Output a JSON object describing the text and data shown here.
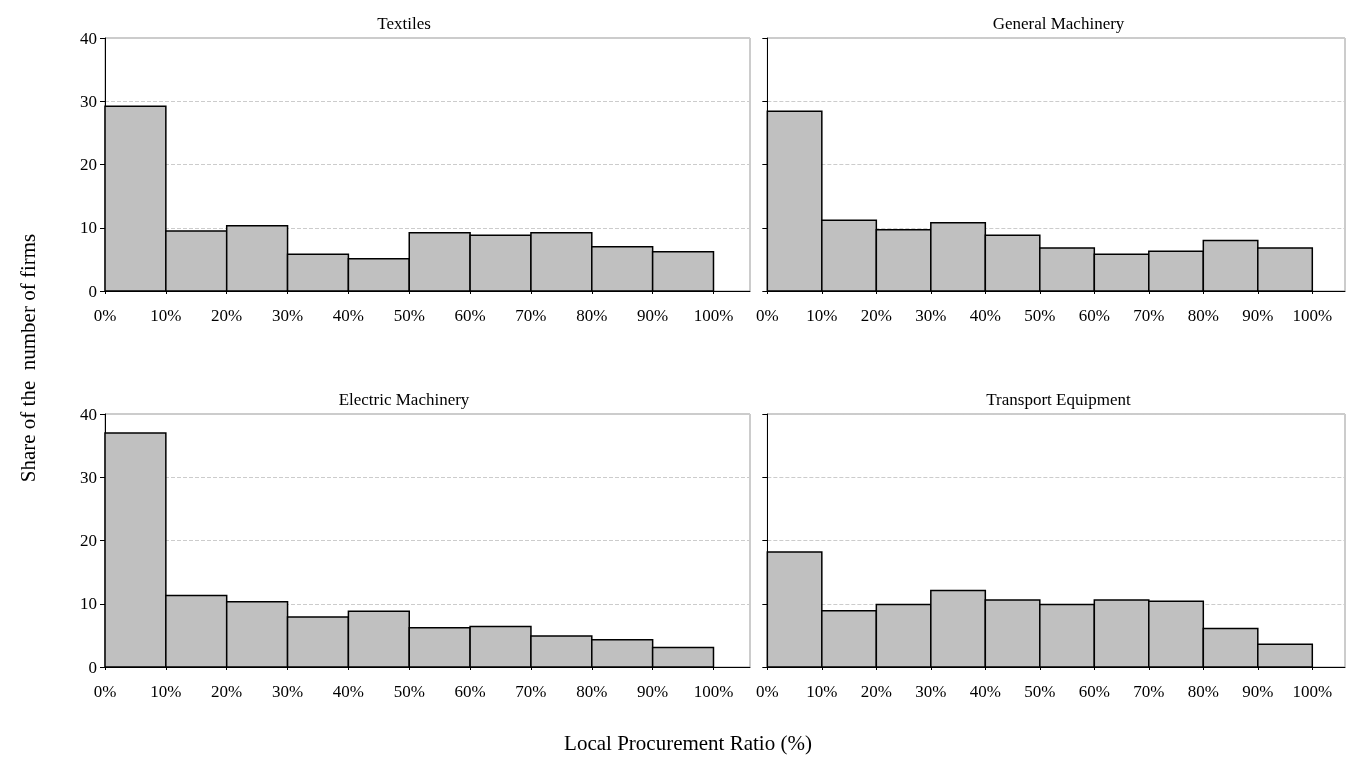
{
  "chart_data": [
    {
      "type": "histogram",
      "title": "Textiles",
      "ylabel": "Share of the  number of firms",
      "bins": [
        0,
        10,
        20,
        30,
        40,
        50,
        60,
        70,
        80,
        90,
        100
      ],
      "values": [
        29.2,
        9.5,
        10.3,
        5.8,
        5.1,
        9.2,
        8.8,
        9.2,
        7.0,
        6.2
      ],
      "color": "#c0c0c0",
      "xlim": [
        0,
        106
      ],
      "xticks": [
        {
          "value": 0,
          "label": "0%"
        },
        {
          "value": 10,
          "label": "10%"
        },
        {
          "value": 20,
          "label": "20%"
        },
        {
          "value": 30,
          "label": "30%"
        },
        {
          "value": 40,
          "label": "40%"
        },
        {
          "value": 50,
          "label": "50%"
        },
        {
          "value": 60,
          "label": "60%"
        },
        {
          "value": 70,
          "label": "70%"
        },
        {
          "value": 80,
          "label": "80%"
        },
        {
          "value": 90,
          "label": "90%"
        },
        {
          "value": 100,
          "label": "100%"
        }
      ],
      "ylim": [
        0,
        40
      ],
      "yticks": [
        0,
        10,
        20,
        30,
        40
      ],
      "grid": "y"
    },
    {
      "type": "histogram",
      "title": "General Machinery",
      "bins": [
        0,
        10,
        20,
        30,
        40,
        50,
        60,
        70,
        80,
        90,
        100
      ],
      "values": [
        28.4,
        11.2,
        9.7,
        10.8,
        8.8,
        6.8,
        5.8,
        6.3,
        8.0,
        6.8
      ],
      "color": "#c0c0c0",
      "xlim": [
        0,
        106
      ],
      "xticks": [
        {
          "value": 0,
          "label": "0%"
        },
        {
          "value": 10,
          "label": "10%"
        },
        {
          "value": 20,
          "label": "20%"
        },
        {
          "value": 30,
          "label": "30%"
        },
        {
          "value": 40,
          "label": "40%"
        },
        {
          "value": 50,
          "label": "50%"
        },
        {
          "value": 60,
          "label": "60%"
        },
        {
          "value": 70,
          "label": "70%"
        },
        {
          "value": 80,
          "label": "80%"
        },
        {
          "value": 90,
          "label": "90%"
        },
        {
          "value": 100,
          "label": "100%"
        }
      ],
      "ylim": [
        0,
        40
      ],
      "yticks": [
        0,
        10,
        20,
        30,
        40
      ],
      "grid": "y",
      "tick_labels": "x"
    },
    {
      "type": "histogram",
      "title": "Electric Machinery",
      "xlabel": "Local Procurement Ratio (%)",
      "bins": [
        0,
        10,
        20,
        30,
        40,
        50,
        60,
        70,
        80,
        90,
        100
      ],
      "values": [
        37.0,
        11.3,
        10.3,
        7.9,
        8.8,
        6.2,
        6.4,
        4.9,
        4.3,
        3.1
      ],
      "color": "#c0c0c0",
      "xlim": [
        0,
        106
      ],
      "xticks": [
        {
          "value": 0,
          "label": "0%"
        },
        {
          "value": 10,
          "label": "10%"
        },
        {
          "value": 20,
          "label": "20%"
        },
        {
          "value": 30,
          "label": "30%"
        },
        {
          "value": 40,
          "label": "40%"
        },
        {
          "value": 50,
          "label": "50%"
        },
        {
          "value": 60,
          "label": "60%"
        },
        {
          "value": 70,
          "label": "70%"
        },
        {
          "value": 80,
          "label": "80%"
        },
        {
          "value": 90,
          "label": "90%"
        },
        {
          "value": 100,
          "label": "100%"
        }
      ],
      "ylim": [
        0,
        40
      ],
      "yticks": [
        0,
        10,
        20,
        30,
        40
      ],
      "grid": "y"
    },
    {
      "type": "histogram",
      "title": "Transport Equipment",
      "bins": [
        0,
        10,
        20,
        30,
        40,
        50,
        60,
        70,
        80,
        90,
        100
      ],
      "values": [
        18.2,
        8.9,
        9.9,
        12.1,
        10.6,
        9.9,
        10.6,
        10.4,
        6.1,
        3.6
      ],
      "color": "#c0c0c0",
      "xlim": [
        0,
        106
      ],
      "xticks": [
        {
          "value": 0,
          "label": "0%"
        },
        {
          "value": 10,
          "label": "10%"
        },
        {
          "value": 20,
          "label": "20%"
        },
        {
          "value": 30,
          "label": "30%"
        },
        {
          "value": 40,
          "label": "40%"
        },
        {
          "value": 50,
          "label": "50%"
        },
        {
          "value": 60,
          "label": "60%"
        },
        {
          "value": 70,
          "label": "70%"
        },
        {
          "value": 80,
          "label": "80%"
        },
        {
          "value": 90,
          "label": "90%"
        },
        {
          "value": 100,
          "label": "100%"
        }
      ],
      "ylim": [
        0,
        40
      ],
      "yticks": [
        0,
        10,
        20,
        30,
        40
      ],
      "grid": "y",
      "tick_labels": "x"
    }
  ]
}
